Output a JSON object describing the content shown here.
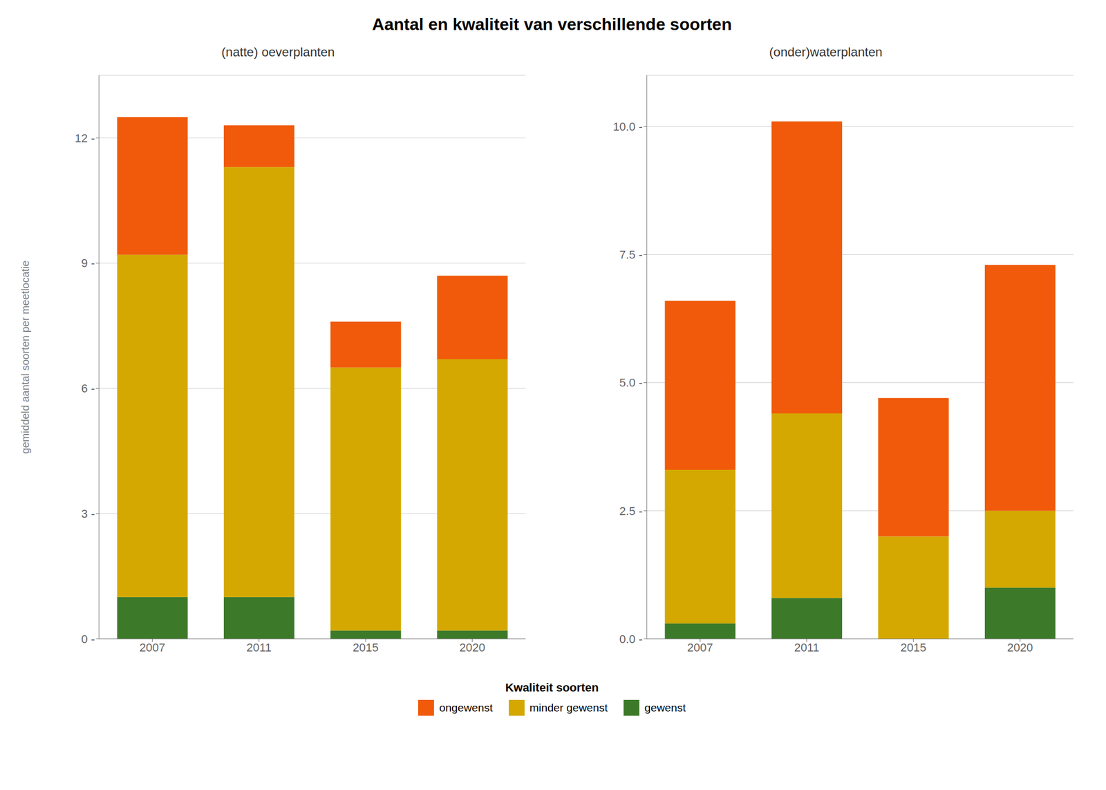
{
  "title": "Aantal en kwaliteit van verschillende soorten",
  "legend_title": "Kwaliteit soorten",
  "chart_data": [
    {
      "type": "bar",
      "title": "(natte) oeverplanten",
      "ylabel": "gemiddeld aantal soorten per meetlocatie",
      "stacked": true,
      "grid": true,
      "categories": [
        "2007",
        "2011",
        "2015",
        "2020"
      ],
      "series": [
        {
          "name": "gewenst",
          "color": "#3C7A2A",
          "values": [
            1.0,
            1.0,
            0.2,
            0.2
          ]
        },
        {
          "name": "minder gewenst",
          "color": "#D4A800",
          "values": [
            8.2,
            10.3,
            6.3,
            6.5
          ]
        },
        {
          "name": "ongewenst",
          "color": "#F05A0A",
          "values": [
            3.3,
            1.0,
            1.1,
            2.0
          ]
        }
      ],
      "ylim": [
        0,
        13.5
      ],
      "yticks": [
        {
          "value": 0,
          "label": "0 -"
        },
        {
          "value": 3,
          "label": "3 -"
        },
        {
          "value": 6,
          "label": "6 -"
        },
        {
          "value": 9,
          "label": "9 -"
        },
        {
          "value": 12,
          "label": "12 -"
        }
      ]
    },
    {
      "type": "bar",
      "title": "(onder)waterplanten",
      "stacked": true,
      "grid": true,
      "categories": [
        "2007",
        "2011",
        "2015",
        "2020"
      ],
      "series": [
        {
          "name": "gewenst",
          "color": "#3C7A2A",
          "values": [
            0.3,
            0.8,
            0.0,
            1.0
          ]
        },
        {
          "name": "minder gewenst",
          "color": "#D4A800",
          "values": [
            3.0,
            3.6,
            2.0,
            1.5
          ]
        },
        {
          "name": "ongewenst",
          "color": "#F05A0A",
          "values": [
            3.3,
            5.7,
            2.7,
            4.8
          ]
        }
      ],
      "ylim": [
        0,
        11.0
      ],
      "yticks": [
        {
          "value": 0.0,
          "label": "0.0 -"
        },
        {
          "value": 2.5,
          "label": "2.5 -"
        },
        {
          "value": 5.0,
          "label": "5.0 -"
        },
        {
          "value": 7.5,
          "label": "7.5 -"
        },
        {
          "value": 10.0,
          "label": "10.0 -"
        }
      ]
    }
  ]
}
